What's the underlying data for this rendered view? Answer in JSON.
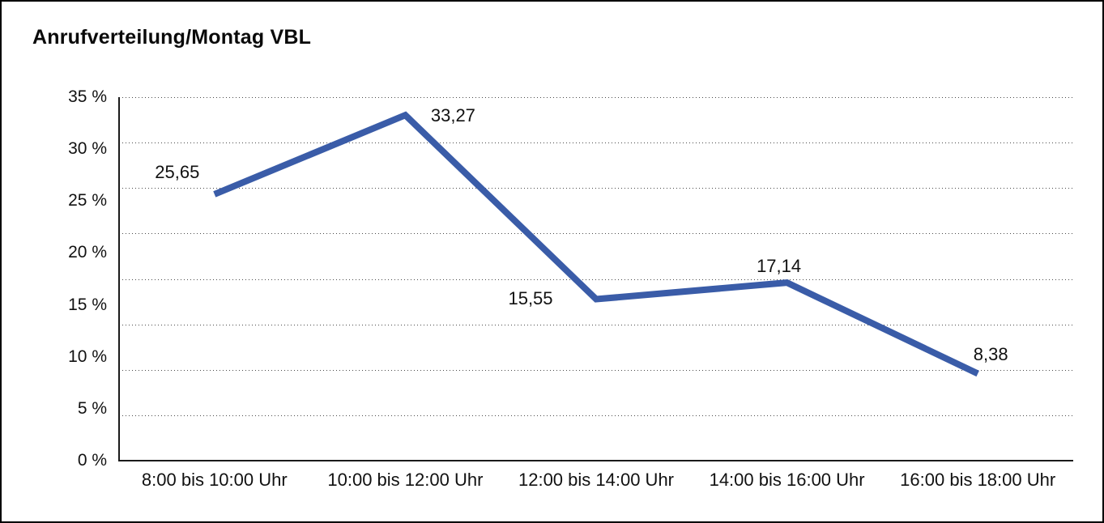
{
  "title": "Anrufverteilung/Montag VBL",
  "colors": {
    "line": "#3a5ca8",
    "grid_dots": "#4a4a4a",
    "axis": "#1a1a1a",
    "text": "#111111",
    "background": "#ffffff",
    "frame_border": "#000000"
  },
  "chart_data": {
    "type": "line",
    "title": "Anrufverteilung/Montag VBL",
    "categories": [
      "8:00 bis 10:00 Uhr",
      "10:00 bis 12:00 Uhr",
      "12:00 bis 14:00 Uhr",
      "14:00 bis 16:00 Uhr",
      "16:00 bis 18:00 Uhr"
    ],
    "values": [
      25.65,
      33.27,
      15.55,
      17.14,
      8.38
    ],
    "value_labels": [
      "25,65",
      "33,27",
      "15,55",
      "17,14",
      "8,38"
    ],
    "y_ticks": [
      "35 %",
      "30 %",
      "25 %",
      "20 %",
      "15 %",
      "10 %",
      "5 %",
      "0 %"
    ],
    "ylim": [
      0,
      35
    ],
    "y_tick_step": 5,
    "gridline_divisions": 8,
    "grid": "horizontal-dotted",
    "legend": "none",
    "xlabel": "",
    "ylabel": ""
  }
}
